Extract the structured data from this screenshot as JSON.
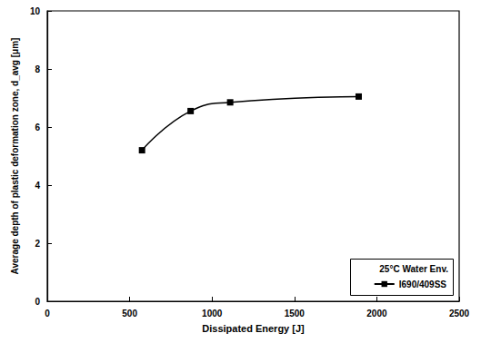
{
  "chart_data": {
    "type": "line",
    "x_label": "Dissipated Energy [J]",
    "y_label": "Average depth of plastic deformation zone, d_avg [μm]",
    "annotations": [
      "25°C Water Env."
    ],
    "series": [
      {
        "name": "I690/409SS",
        "color": "#000000",
        "marker": "square",
        "line_style": "solid",
        "x": [
          575,
          870,
          1110,
          1890
        ],
        "values": [
          5.2,
          6.55,
          6.85,
          7.05
        ]
      }
    ],
    "xlim": [
      0,
      2500
    ],
    "xticks": [
      0,
      500,
      1000,
      1500,
      2000,
      2500
    ],
    "ylim": [
      0,
      10
    ],
    "yticks": [
      0,
      2,
      4,
      6,
      8,
      10
    ],
    "grid": false,
    "legend": "lower right"
  }
}
